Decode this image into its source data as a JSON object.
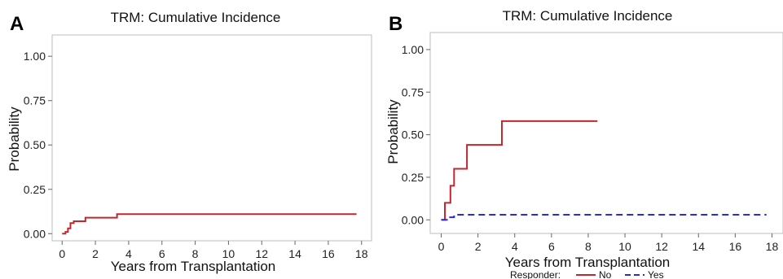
{
  "chart_data": [
    {
      "type": "line",
      "panel_label": "A",
      "title": "TRM: Cumulative Incidence",
      "xlabel": "Years from Transplantation",
      "ylabel": "Probability",
      "xlim": [
        -0.6,
        18.6
      ],
      "ylim": [
        -0.04,
        1.12
      ],
      "xticks": [
        0,
        2,
        4,
        6,
        8,
        10,
        12,
        14,
        16,
        18
      ],
      "yticks": [
        0.0,
        0.25,
        0.5,
        0.75,
        1.0
      ],
      "ytick_labels": [
        "0.00",
        "0.25",
        "0.50",
        "0.75",
        "1.00"
      ],
      "grid": false,
      "series": [
        {
          "color": "#c0282d",
          "dash": "solid",
          "step_x": [
            0,
            0.2,
            0.35,
            0.5,
            0.7,
            1.4,
            3.3,
            17.7
          ],
          "step_y": [
            0.0,
            0.01,
            0.03,
            0.06,
            0.07,
            0.09,
            0.11,
            0.11
          ]
        }
      ]
    },
    {
      "type": "line",
      "panel_label": "B",
      "title": "TRM: Cumulative Incidence",
      "xlabel": "Years from Transplantation",
      "ylabel": "Probability",
      "xlim": [
        -0.6,
        18.6
      ],
      "ylim": [
        -0.08,
        1.1
      ],
      "xticks": [
        0,
        2,
        4,
        6,
        8,
        10,
        12,
        14,
        16,
        18
      ],
      "yticks": [
        0.0,
        0.25,
        0.5,
        0.75,
        1.0
      ],
      "ytick_labels": [
        "0.00",
        "0.25",
        "0.50",
        "0.75",
        "1.00"
      ],
      "grid": false,
      "legend": {
        "placement": "bottom",
        "title": "Responder:",
        "entries": [
          {
            "label": "No",
            "color": "#c0282d",
            "dash": "solid"
          },
          {
            "label": "Yes",
            "color": "#2b2bdc",
            "dash": "dashed"
          }
        ]
      },
      "series": [
        {
          "name": "No",
          "color": "#c0282d",
          "dash": "solid",
          "step_x": [
            0,
            0.2,
            0.5,
            0.7,
            1.4,
            3.3,
            8.5
          ],
          "step_y": [
            0.0,
            0.1,
            0.2,
            0.3,
            0.44,
            0.58,
            0.58
          ]
        },
        {
          "name": "Yes",
          "color": "#2b2bdc",
          "dash": "dashed",
          "step_x": [
            0,
            0.4,
            0.7,
            17.7
          ],
          "step_y": [
            0.0,
            0.015,
            0.03,
            0.03
          ]
        }
      ]
    }
  ]
}
